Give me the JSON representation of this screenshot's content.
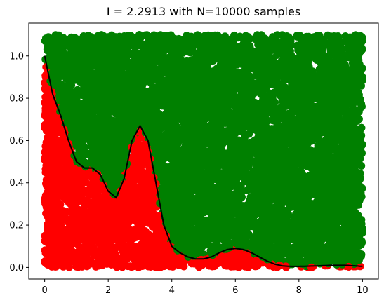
{
  "chart_data": {
    "type": "scatter",
    "title": "I =  2.2913 with N=10000 samples",
    "xlabel": "",
    "ylabel": "",
    "xlim": [
      -0.5,
      10.5
    ],
    "ylim": [
      -0.055,
      1.155
    ],
    "x_ticks": [
      0,
      2,
      4,
      6,
      8,
      10
    ],
    "x_tick_labels": [
      "0",
      "2",
      "4",
      "6",
      "8",
      "10"
    ],
    "y_ticks": [
      0.0,
      0.2,
      0.4,
      0.6,
      0.8,
      1.0
    ],
    "y_tick_labels": [
      "0.0",
      "0.2",
      "0.4",
      "0.6",
      "0.8",
      "1.0"
    ],
    "grid": false,
    "sample_region": {
      "x": [
        0,
        10
      ],
      "y": [
        0,
        1.1
      ]
    },
    "num_samples": 10000,
    "integral_estimate": 2.2913,
    "colors": {
      "below": "#ff0000",
      "above": "#008000",
      "curve": "#000000"
    },
    "series": [
      {
        "type": "line",
        "x": [
          0,
          0.25,
          0.5,
          0.75,
          1.0,
          1.25,
          1.5,
          1.75,
          2.0,
          2.25,
          2.5,
          2.75,
          3.0,
          3.25,
          3.5,
          3.75,
          4.0,
          4.25,
          4.5,
          4.75,
          5.0,
          5.25,
          5.5,
          5.75,
          6.0,
          6.25,
          6.5,
          6.75,
          7.0,
          7.25,
          7.5,
          7.75,
          8.0,
          8.5,
          9.0,
          9.5,
          10.0
        ],
        "values": [
          1.0,
          0.82,
          0.72,
          0.6,
          0.5,
          0.47,
          0.47,
          0.44,
          0.36,
          0.33,
          0.42,
          0.6,
          0.67,
          0.6,
          0.4,
          0.2,
          0.1,
          0.07,
          0.05,
          0.04,
          0.04,
          0.05,
          0.07,
          0.085,
          0.09,
          0.085,
          0.07,
          0.05,
          0.03,
          0.015,
          0.007,
          0.005,
          0.005,
          0.007,
          0.01,
          0.01,
          0.005
        ]
      }
    ]
  }
}
